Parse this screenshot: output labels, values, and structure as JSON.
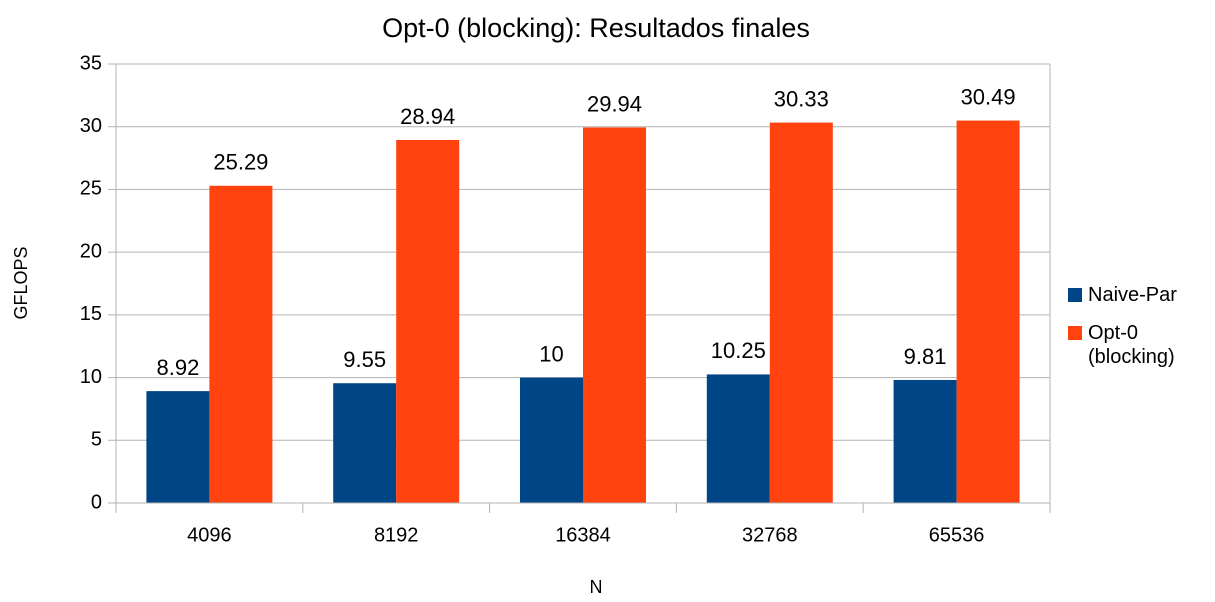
{
  "chart_data": {
    "type": "bar",
    "title": "Opt-0 (blocking): Resultados finales",
    "x_label": "N",
    "y_label": "GFLOPS",
    "categories": [
      "4096",
      "8192",
      "16384",
      "32768",
      "65536"
    ],
    "series": [
      {
        "name": "Naive-Par",
        "color": "#004586",
        "values": [
          8.92,
          9.55,
          10,
          10.25,
          9.81
        ]
      },
      {
        "name": "Opt-0 (blocking)",
        "color": "#ff420e",
        "values": [
          25.29,
          28.94,
          29.94,
          30.33,
          30.49
        ]
      }
    ],
    "ylim": [
      0,
      35
    ],
    "yticks": [
      0,
      5,
      10,
      15,
      20,
      25,
      30,
      35
    ],
    "grid": true,
    "legend": "right"
  }
}
